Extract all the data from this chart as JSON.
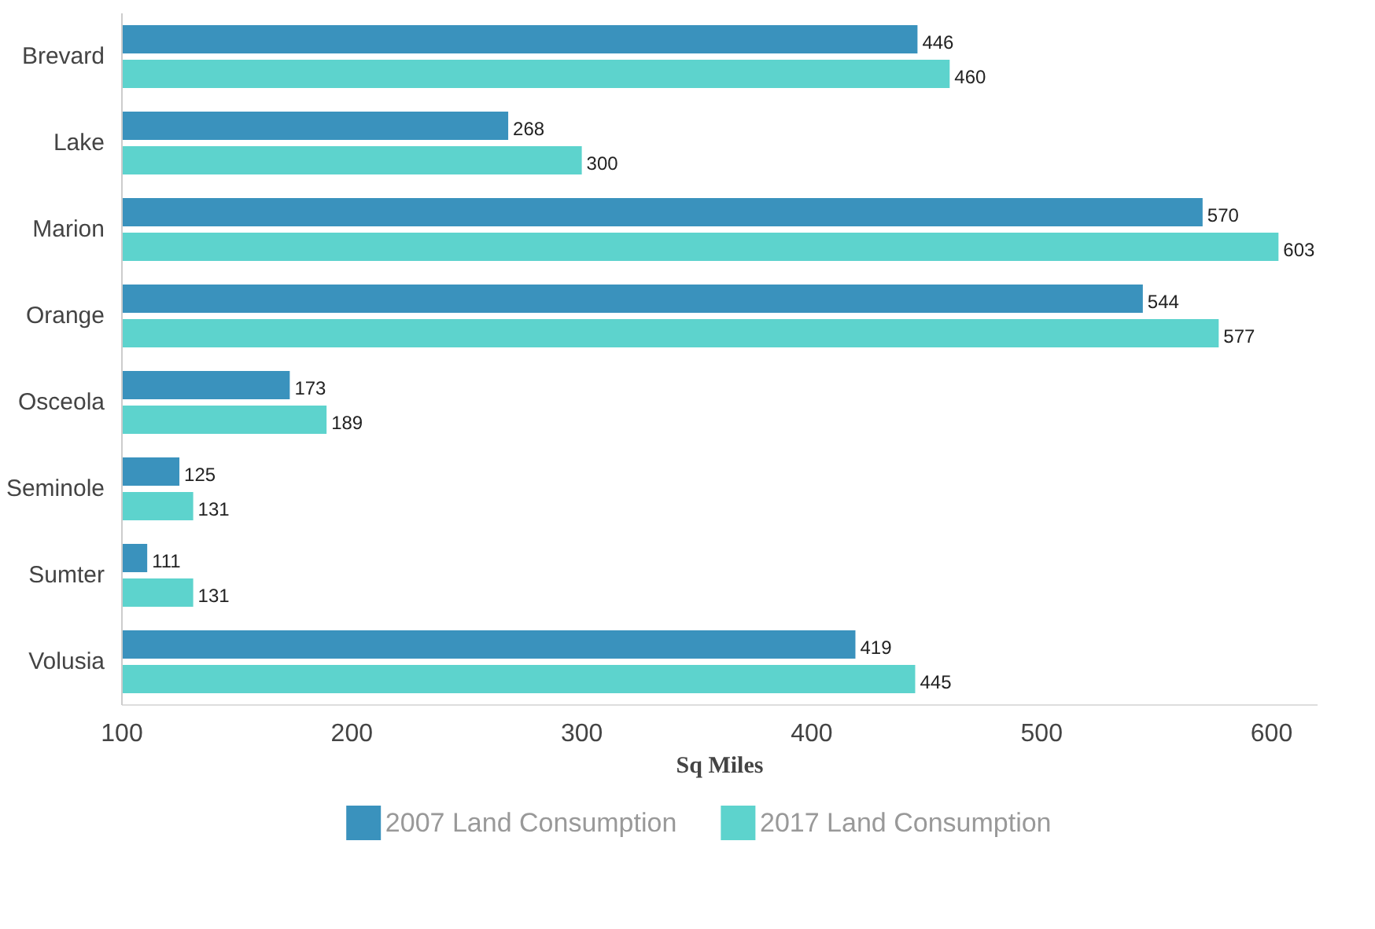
{
  "chart_data": {
    "type": "bar",
    "orientation": "horizontal",
    "xlabel": "Sq Miles",
    "categories": [
      "Brevard",
      "Lake",
      "Marion",
      "Orange",
      "Osceola",
      "Seminole",
      "Sumter",
      "Volusia"
    ],
    "series": [
      {
        "name": "2007 Land Consumption",
        "color": "#3a92bd",
        "values": [
          446,
          268,
          570,
          544,
          173,
          125,
          111,
          419
        ]
      },
      {
        "name": "2017 Land Consumption",
        "color": "#5dd3cd",
        "values": [
          460,
          300,
          603,
          577,
          189,
          131,
          131,
          445
        ]
      }
    ],
    "xlim": [
      100,
      620
    ],
    "xticks": [
      100,
      200,
      300,
      400,
      500,
      600
    ],
    "grid": false,
    "data_labels": true,
    "legend": "bottom"
  }
}
